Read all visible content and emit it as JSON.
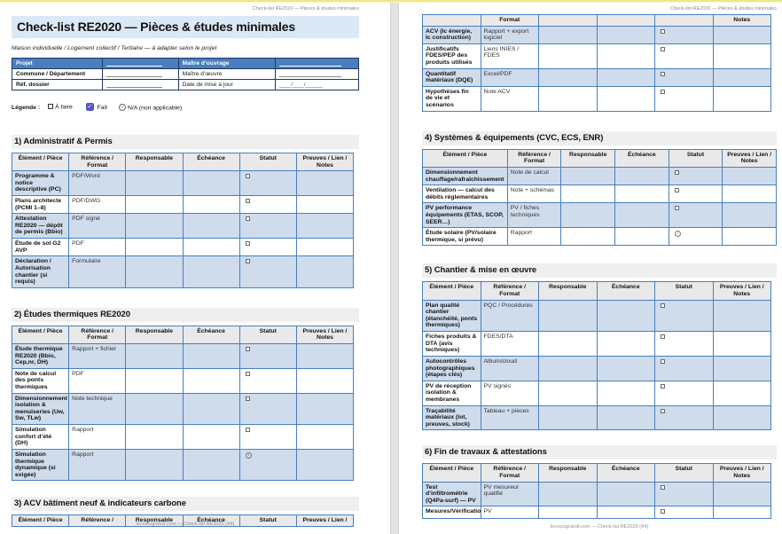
{
  "page_header": "Check-list RE2020 — Pièces & études minimales",
  "footer_text": "lecoursgratuit.com — Check-list RE2020 (A4)",
  "document": {
    "title": "Check-list RE2020 — Pièces & études minimales",
    "subtitle": "Maison individuelle / Logement collectif / Tertiaire — à adapter selon le projet"
  },
  "info_table": {
    "rows": [
      {
        "label_left": "Projet",
        "label_right": "Maître d’ouvrage"
      },
      {
        "label_left": "Commune / Département",
        "label_right": "Maître d’œuvre"
      },
      {
        "label_left": "Réf. dossier",
        "label_right": "Date de mise à jour",
        "value_right": "____/____/______"
      }
    ]
  },
  "legend": {
    "label": "Légende :",
    "todo": "À faire",
    "done": "Fait",
    "na": "N/A (non applicable)",
    "done_check": "✓",
    "na_glyph": "i",
    "done_color": "#5a55c8"
  },
  "columns_full": [
    "Élément / Pièce",
    "Référence / Format",
    "Responsable",
    "Échéance",
    "Statut",
    "Preuves / Lien / Notes"
  ],
  "tables": {
    "s1": {
      "heading": "1) Administratif & Permis",
      "columns": [
        "Élément / Pièce",
        "Référence / Format",
        "Responsable",
        "Échéance",
        "Statut",
        "Preuves / Lien / Notes"
      ],
      "rows": [
        {
          "item": "Programme & notice descriptive (PC)",
          "format": "PDF/Word",
          "status": "todo"
        },
        {
          "item": "Plans architecte (PCMI 1–8)",
          "format": "PDF/DWG",
          "status": "todo"
        },
        {
          "item": "Attestation RE2020 — dépôt de permis (Bbio)",
          "format": "PDF signé",
          "status": "todo"
        },
        {
          "item": "Étude de sol G2 AVP",
          "format": "PDF",
          "status": "todo"
        },
        {
          "item": "Déclaration / Autorisation chantier (si requis)",
          "format": "Formulaire",
          "status": "todo"
        }
      ]
    },
    "s2": {
      "heading": "2) Études thermiques RE2020",
      "columns": [
        "Élément / Pièce",
        "Référence / Format",
        "Responsable",
        "Échéance",
        "Statut",
        "Preuves / Lien / Notes"
      ],
      "rows": [
        {
          "item": "Étude thermique RE2020 (Bbio, Cep,nr, DH)",
          "format": "Rapport + fichier",
          "status": "todo"
        },
        {
          "item": "Note de calcul des ponts thermiques",
          "format": "PDF",
          "status": "todo"
        },
        {
          "item": "Dimensionnement isolation & menuiseries (Uw, Sw, TLw)",
          "format": "Note technique",
          "status": "todo"
        },
        {
          "item": "Simulation confort d’été (DH)",
          "format": "Rapport",
          "status": "todo"
        },
        {
          "item": "Simulation thermique dynamique (si exigée)",
          "format": "Rapport",
          "status": "na"
        }
      ]
    },
    "s3_header": {
      "heading": "3) ACV bâtiment neuf & indicateurs carbone",
      "columns": [
        "Élément / Pièce",
        "Référence /",
        "Responsable",
        "Échéance",
        "Statut",
        "Preuves / Lien /"
      ],
      "rows": []
    },
    "s3_cont": {
      "columns": [
        "",
        "Format",
        "",
        "",
        "",
        "Notes"
      ],
      "rows": [
        {
          "item": "ACV (Ic énergie, Ic construction)",
          "format": "Rapport + export logiciel",
          "status": "todo"
        },
        {
          "item": "Justificatifs FDES/PEP des produits utilisés",
          "format": "Liens INIES / FDES",
          "status": "todo"
        },
        {
          "item": "Quantitatif matériaux (DQE)",
          "format": "Excel/PDF",
          "status": "todo"
        },
        {
          "item": "Hypothèses fin de vie et scénarios",
          "format": "Note ACV",
          "status": "todo"
        }
      ]
    },
    "s4": {
      "heading": "4) Systèmes & équipements (CVC, ECS, ENR)",
      "columns": [
        "Élément / Pièce",
        "Référence / Format",
        "Responsable",
        "Échéance",
        "Statut",
        "Preuves / Lien / Notes"
      ],
      "rows": [
        {
          "item": "Dimensionnement chauffage/rafraîchissement",
          "format": "Note de calcul",
          "status": "todo"
        },
        {
          "item": "Ventilation — calcul des débits réglementaires",
          "format": "Note + schémas",
          "status": "todo"
        },
        {
          "item": "PV performance équipements (ETAS, SCOP, SEER…)",
          "format": "PV / fiches techniques",
          "status": "todo"
        },
        {
          "item": "Étude solaire (PV/solaire thermique, si prévu)",
          "format": "Rapport",
          "status": "na"
        }
      ]
    },
    "s5": {
      "heading": "5) Chantier & mise en œuvre",
      "columns": [
        "Élément / Pièce",
        "Référence / Format",
        "Responsable",
        "Échéance",
        "Statut",
        "Preuves / Lien / Notes"
      ],
      "rows": [
        {
          "item": "Plan qualité chantier (étanchéité, ponts thermiques)",
          "format": "PQC / Procédures",
          "status": "todo"
        },
        {
          "item": "Fiches produits & DTA (avis techniques)",
          "format": "FDES/DTA",
          "status": "todo"
        },
        {
          "item": "Autocontrôles photographiques (étapes clés)",
          "format": "Album/cloud",
          "status": "todo"
        },
        {
          "item": "PV de réception isolation & membranes",
          "format": "PV signés",
          "status": "todo"
        },
        {
          "item": "Traçabilité matériaux (lot, preuves, stock)",
          "format": "Tableau + pièces",
          "status": "todo"
        }
      ]
    },
    "s6": {
      "heading": "6) Fin de travaux & attestations",
      "columns": [
        "Élément / Pièce",
        "Référence / Format",
        "Responsable",
        "Échéance",
        "Statut",
        "Preuves / Lien / Notes"
      ],
      "rows": [
        {
          "item": "Test d’infiltrométrie (Q4Pa-surf) — PV",
          "format": "PV mesureur qualifié",
          "status": "todo"
        },
        {
          "item": "Mesures/Vérification",
          "format": "PV",
          "status": "todo"
        }
      ]
    }
  },
  "colors": {
    "table_border": "#4a7ebc",
    "band_fill": "#cfdcec",
    "header_fill": "#e9e9e9",
    "title_fill": "#dbe9f6",
    "info_header_fill": "#4a7ebd",
    "top_strip": "#ebe88a"
  }
}
